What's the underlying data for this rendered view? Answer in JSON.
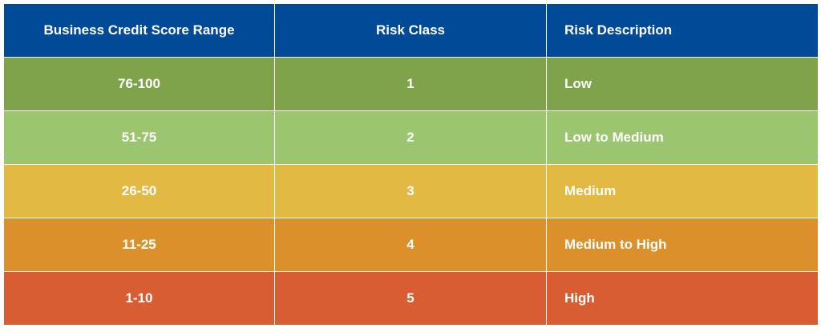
{
  "table": {
    "header": [
      "Business Credit Score Range",
      "Risk Class",
      "Risk Description"
    ],
    "rows": [
      [
        "76-100",
        1,
        "Low"
      ],
      [
        "51-75",
        2,
        "Low to Medium"
      ],
      [
        "26-50",
        3,
        "Medium"
      ],
      [
        "11-25",
        4,
        "Medium to High"
      ],
      [
        "1-10",
        5,
        "High"
      ]
    ]
  }
}
